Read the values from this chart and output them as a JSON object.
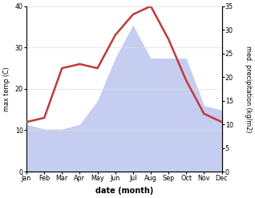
{
  "months": [
    "Jan",
    "Feb",
    "Mar",
    "Apr",
    "May",
    "Jun",
    "Jul",
    "Aug",
    "Sep",
    "Oct",
    "Nov",
    "Dec"
  ],
  "temp": [
    12,
    13,
    25,
    26,
    25,
    33,
    38,
    40,
    32,
    22,
    14,
    12
  ],
  "precip": [
    10,
    9,
    9,
    10,
    15,
    24,
    31,
    24,
    24,
    24,
    14,
    13
  ],
  "temp_color": "#c0393b",
  "precip_fill_color": "#c5cef0",
  "temp_ylim": [
    0,
    40
  ],
  "precip_ylim": [
    0,
    35
  ],
  "xlabel": "date (month)",
  "ylabel_left": "max temp (C)",
  "ylabel_right": "med. precipitation (kg/m2)",
  "bg_color": "#ffffff",
  "grid_color": "#dddddd"
}
